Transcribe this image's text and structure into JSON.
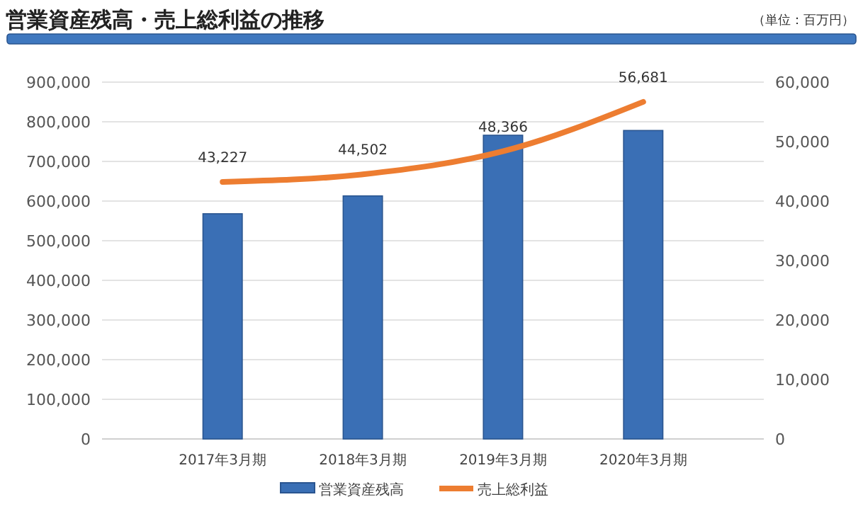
{
  "chart_data": {
    "type": "bar",
    "title": "営業資産残高・売上総利益の推移",
    "annotations": [
      "（単位：百万円）"
    ],
    "categories": [
      "2017年3月期",
      "2018年3月期",
      "2019年3月期",
      "2020年3月期"
    ],
    "series": [
      {
        "name": "営業資産残高",
        "color": "#3a6fb5",
        "values": [
          568000,
          613000,
          766000,
          778000
        ]
      },
      {
        "name": "売上総利益",
        "type": "line",
        "axis": "y2",
        "color": "#ed7d31",
        "values": [
          43227,
          44502,
          48366,
          56681
        ],
        "value_labels": [
          "43,227",
          "44,502",
          "48,366",
          "56,681"
        ]
      }
    ],
    "ylim": [
      0,
      900000
    ],
    "yticks": [
      0,
      {
        "value": 100000,
        "label": "100,000"
      },
      {
        "value": 200000,
        "label": "200,000"
      },
      {
        "value": 300000,
        "label": "300,000"
      },
      {
        "value": 400000,
        "label": "400,000"
      },
      {
        "value": 500000,
        "label": "500,000"
      },
      {
        "value": 600000,
        "label": "600,000"
      },
      {
        "value": 700000,
        "label": "700,000"
      },
      {
        "value": 800000,
        "label": "800,000"
      },
      {
        "value": 900000,
        "label": "900,000"
      }
    ],
    "y2lim": [
      0,
      60000
    ],
    "y2ticks": [
      0,
      {
        "value": 10000,
        "label": "10,000"
      },
      {
        "value": 20000,
        "label": "20,000"
      },
      {
        "value": 30000,
        "label": "30,000"
      },
      {
        "value": 40000,
        "label": "40,000"
      },
      {
        "value": 50000,
        "label": "50,000"
      },
      {
        "value": 60000,
        "label": "60,000"
      }
    ],
    "grid": "y",
    "legend": "bottom"
  }
}
